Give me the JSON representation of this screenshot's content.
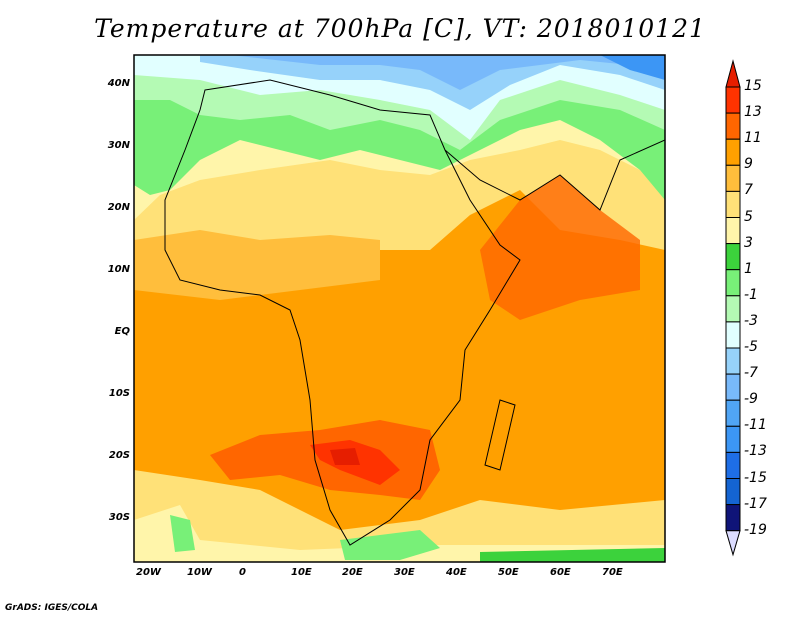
{
  "title": "Temperature at 700hPa [C], VT: 2018010121",
  "credit": "GrADS: IGES/COLA",
  "map": {
    "variable": "Temperature at 700hPa",
    "units": "C",
    "valid_time": "2018010121",
    "lon_labels": [
      "20W",
      "10W",
      "0",
      "10E",
      "20E",
      "30E",
      "40E",
      "50E",
      "60E",
      "70E"
    ],
    "lat_labels": [
      "40N",
      "30N",
      "20N",
      "10N",
      "EQ",
      "10S",
      "20S",
      "30S"
    ]
  },
  "colorbar": {
    "labels": [
      "15",
      "13",
      "11",
      "9",
      "7",
      "5",
      "3",
      "1",
      "-1",
      "-3",
      "-5",
      "-7",
      "-9",
      "-11",
      "-13",
      "-15",
      "-17",
      "-19"
    ],
    "colors": [
      "#e61e00",
      "#ff3300",
      "#ff6600",
      "#ffa000",
      "#ffbe3c",
      "#ffe178",
      "#fff5aa",
      "#3cd23c",
      "#78f078",
      "#b4fab4",
      "#e1ffff",
      "#96d2fa",
      "#78b9fa",
      "#50a5f5",
      "#3c96f5",
      "#1e6ee6",
      "#1464d2",
      "#0f1478",
      "#dcdcff"
    ]
  }
}
